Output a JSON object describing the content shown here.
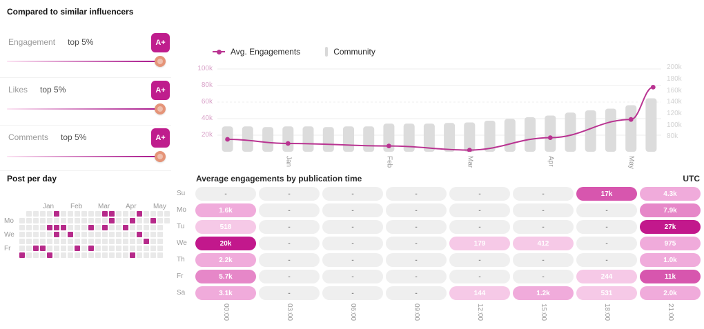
{
  "colors": {
    "accent": "#bf1d8d",
    "line": "#b93391",
    "bar": "#dcdcdc",
    "left_axis_label": "#d9a3c9",
    "right_axis_label": "#d2d2d2",
    "grid_line": "#ececec",
    "heat_levels": [
      "#efefef",
      "#f6c9e7",
      "#f0abdb",
      "#e687c8",
      "#d756ae",
      "#c2188c"
    ],
    "heat_empty_text": "#8d8d8d",
    "calendar_active": "#b62a8a",
    "calendar_empty": "#e9e9e9",
    "marker": "#e59478",
    "slider_from": "#fce4f3",
    "slider_to": "#a50f87"
  },
  "compare": {
    "title": "Compared to similar influencers",
    "metrics": [
      {
        "label": "Engagement",
        "rank": "top 5%",
        "grade": "A+"
      },
      {
        "label": "Likes",
        "rank": "top 5%",
        "grade": "A+"
      },
      {
        "label": "Comments",
        "rank": "top 5%",
        "grade": "A+"
      }
    ]
  },
  "post_per_day": {
    "title": "Post per day",
    "day_labels": [
      "Mo",
      "We",
      "Fr"
    ],
    "day_rows": [
      1,
      3,
      5
    ],
    "months": [
      "Jan",
      "Feb",
      "Mar",
      "Apr",
      "May"
    ],
    "month_cols": [
      4,
      8,
      12,
      16,
      20
    ],
    "rows": 7,
    "cols": 22,
    "active_cells": [
      [
        0,
        5
      ],
      [
        0,
        12
      ],
      [
        0,
        13
      ],
      [
        0,
        17
      ],
      [
        1,
        13
      ],
      [
        1,
        16
      ],
      [
        1,
        19
      ],
      [
        2,
        4
      ],
      [
        2,
        5
      ],
      [
        2,
        6
      ],
      [
        2,
        10
      ],
      [
        2,
        12
      ],
      [
        2,
        15
      ],
      [
        3,
        5
      ],
      [
        3,
        7
      ],
      [
        3,
        17
      ],
      [
        4,
        18
      ],
      [
        5,
        2
      ],
      [
        5,
        3
      ],
      [
        5,
        8
      ],
      [
        5,
        10
      ],
      [
        6,
        0
      ],
      [
        6,
        4
      ],
      [
        6,
        16
      ]
    ],
    "hidden_cells": [
      [
        0,
        0
      ],
      [
        2,
        21
      ],
      [
        3,
        21
      ],
      [
        4,
        21
      ],
      [
        5,
        21
      ],
      [
        6,
        21
      ]
    ]
  },
  "chart_data": {
    "type": "line+bar",
    "legend": [
      {
        "label": "Avg. Engagements",
        "series_type": "line"
      },
      {
        "label": "Community",
        "series_type": "bar"
      }
    ],
    "left_axis": {
      "tick_labels": [
        "100k",
        "80k",
        "60k",
        "40k",
        "20k"
      ],
      "tick_values_k": [
        100,
        80,
        60,
        40,
        20
      ],
      "range_k": [
        0,
        104
      ]
    },
    "right_axis": {
      "tick_labels": [
        "200k",
        "180k",
        "160k",
        "140k",
        "120k",
        "100k",
        "80k"
      ],
      "tick_values_k": [
        200,
        180,
        160,
        140,
        120,
        100,
        80
      ],
      "range_k": [
        54,
        204
      ]
    },
    "x_tick_labels": [
      "Jan",
      "Feb",
      "Mar",
      "Apr",
      "May"
    ],
    "x_tick_bar_index": [
      3,
      8,
      12,
      16,
      20
    ],
    "series": [
      {
        "name": "Community",
        "type": "bar",
        "axis": "right",
        "values_k": [
          98,
          98,
          97,
          98,
          98,
          97,
          98,
          98,
          103,
          103,
          103,
          104,
          105,
          108,
          111,
          114,
          117,
          122,
          126,
          129,
          135,
          147
        ]
      },
      {
        "name": "Avg. Engagements",
        "type": "line",
        "axis": "left",
        "points": [
          {
            "x": 0,
            "value_k": 15
          },
          {
            "x": 3,
            "value_k": 10
          },
          {
            "x": 8,
            "value_k": 7
          },
          {
            "x": 12,
            "value_k": 2
          },
          {
            "x": 16,
            "value_k": 17
          },
          {
            "x": 20,
            "value_k": 39
          },
          {
            "x": 21.1,
            "value_k": 78
          }
        ]
      }
    ],
    "grid": "horizontal"
  },
  "pub_time": {
    "title": "Average engagements by publication time",
    "timezone": "UTC",
    "day_labels": [
      "Su",
      "Mo",
      "Tu",
      "We",
      "Th",
      "Fr",
      "Sa"
    ],
    "time_labels": [
      "00:00",
      "03:00",
      "06:00",
      "09:00",
      "12:00",
      "15:00",
      "18:00",
      "21:00"
    ],
    "cells": [
      [
        "-",
        "-",
        "-",
        "-",
        "-",
        "-",
        "17k",
        "4.3k"
      ],
      [
        "1.6k",
        "-",
        "-",
        "-",
        "-",
        "-",
        "-",
        "7.9k"
      ],
      [
        "518",
        "-",
        "-",
        "-",
        "-",
        "-",
        "-",
        "27k"
      ],
      [
        "20k",
        "-",
        "-",
        "-",
        "179",
        "412",
        "-",
        "975"
      ],
      [
        "2.2k",
        "-",
        "-",
        "-",
        "-",
        "-",
        "-",
        "1.0k"
      ],
      [
        "5.7k",
        "-",
        "-",
        "-",
        "-",
        "-",
        "244",
        "11k"
      ],
      [
        "3.1k",
        "-",
        "-",
        "-",
        "144",
        "1.2k",
        "531",
        "2.0k"
      ]
    ],
    "levels": [
      [
        0,
        0,
        0,
        0,
        0,
        0,
        4,
        2
      ],
      [
        2,
        0,
        0,
        0,
        0,
        0,
        0,
        3
      ],
      [
        1,
        0,
        0,
        0,
        0,
        0,
        0,
        5
      ],
      [
        5,
        0,
        0,
        0,
        1,
        1,
        0,
        2
      ],
      [
        2,
        0,
        0,
        0,
        0,
        0,
        0,
        2
      ],
      [
        3,
        0,
        0,
        0,
        0,
        0,
        1,
        4
      ],
      [
        2,
        0,
        0,
        0,
        1,
        2,
        1,
        2
      ]
    ]
  }
}
